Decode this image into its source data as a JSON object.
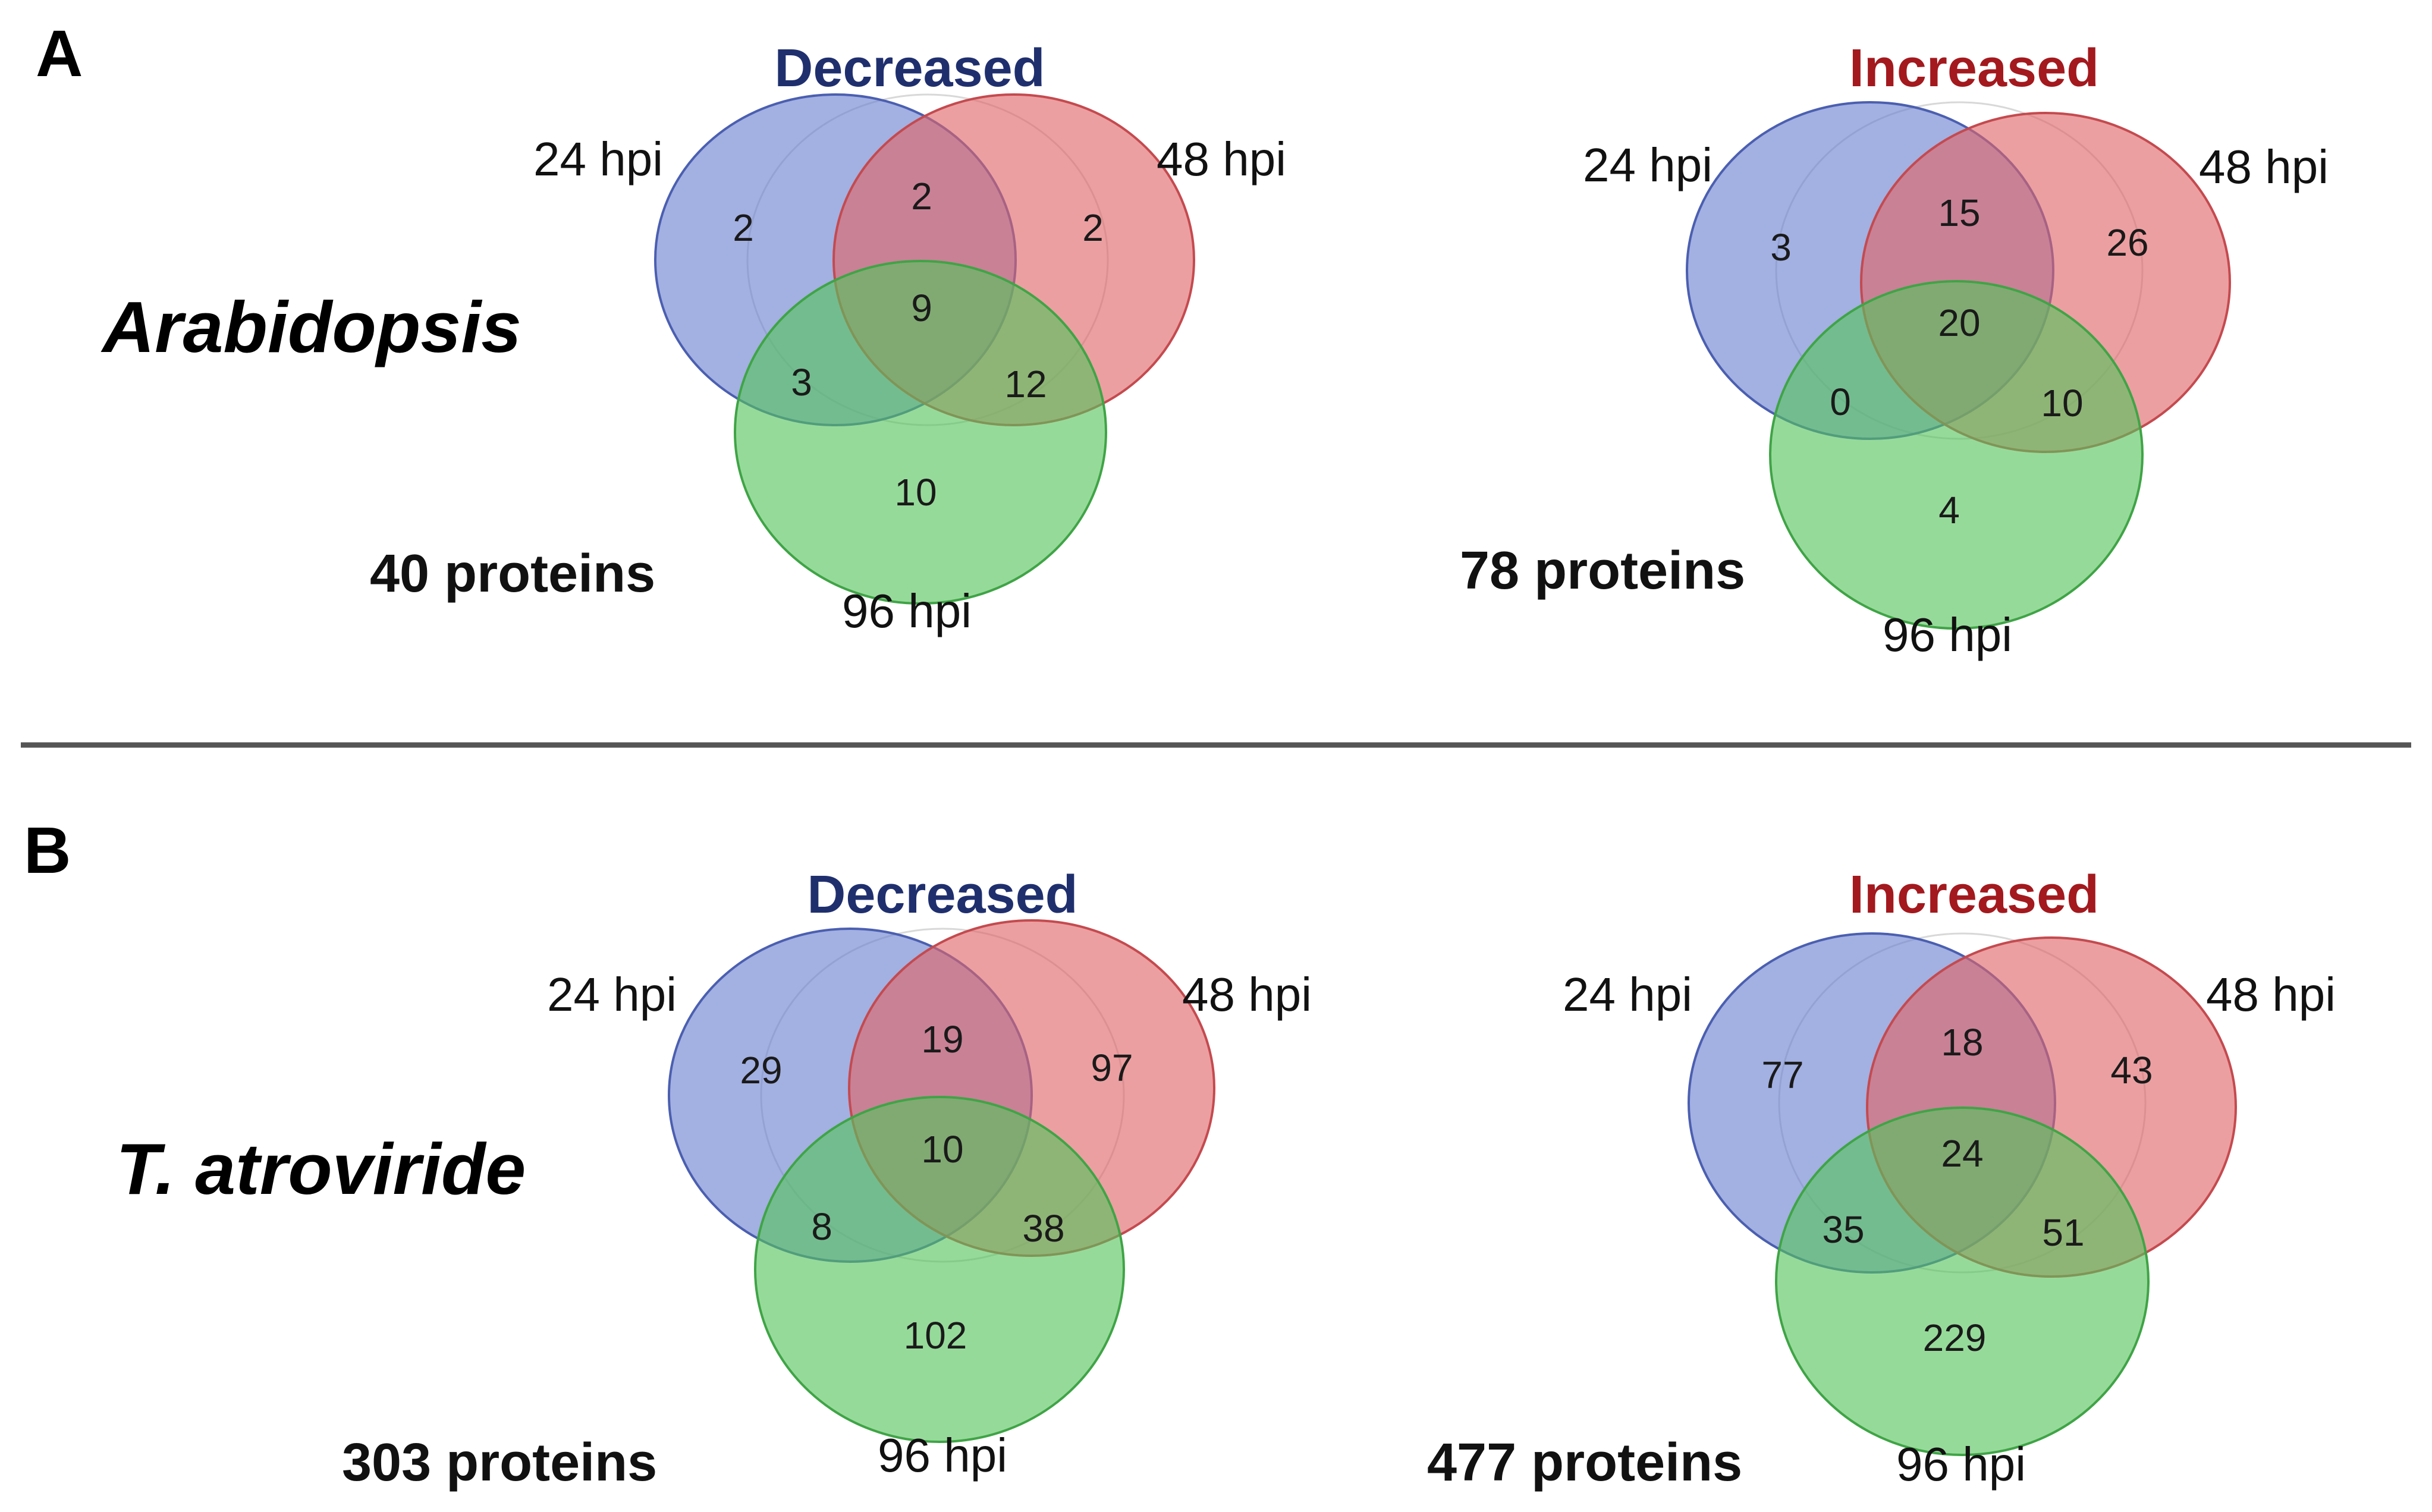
{
  "figure": {
    "panels": [
      {
        "letter": "A",
        "organism": "Arabidopsis",
        "diagrams": [
          {
            "title": "Decreased",
            "title_color": "#1f2f6e",
            "total": "40 proteins",
            "sets": {
              "a": "24 hpi",
              "b": "48 hpi",
              "c": "96 hpi"
            },
            "regions": {
              "a_only": "2",
              "ab": "2",
              "b_only": "2",
              "abc": "9",
              "ac": "3",
              "bc": "12",
              "c_only": "10"
            }
          },
          {
            "title": "Increased",
            "title_color": "#a3191e",
            "total": "78 proteins",
            "sets": {
              "a": "24 hpi",
              "b": "48 hpi",
              "c": "96 hpi"
            },
            "regions": {
              "a_only": "3",
              "ab": "15",
              "b_only": "26",
              "abc": "20",
              "ac": "0",
              "bc": "10",
              "c_only": "4"
            }
          }
        ]
      },
      {
        "letter": "B",
        "organism": "T. atroviride",
        "diagrams": [
          {
            "title": "Decreased",
            "title_color": "#1f2f6e",
            "total": "303 proteins",
            "sets": {
              "a": "24 hpi",
              "b": "48 hpi",
              "c": "96 hpi"
            },
            "regions": {
              "a_only": "29",
              "ab": "19",
              "b_only": "97",
              "abc": "10",
              "ac": "8",
              "bc": "38",
              "c_only": "102"
            }
          },
          {
            "title": "Increased",
            "title_color": "#a3191e",
            "total": "477 proteins",
            "sets": {
              "a": "24 hpi",
              "b": "48 hpi",
              "c": "96 hpi"
            },
            "regions": {
              "a_only": "77",
              "ab": "18",
              "b_only": "43",
              "abc": "24",
              "ac": "35",
              "bc": "51",
              "c_only": "229"
            }
          }
        ]
      }
    ],
    "colors": {
      "set_a_fill": "#6a7fd0",
      "set_a_stroke": "#4b5fb0",
      "set_b_fill": "#e06468",
      "set_b_stroke": "#c44a4f",
      "set_c_fill": "#55c45c",
      "set_c_stroke": "#3fa446",
      "divider": "#555555"
    }
  }
}
